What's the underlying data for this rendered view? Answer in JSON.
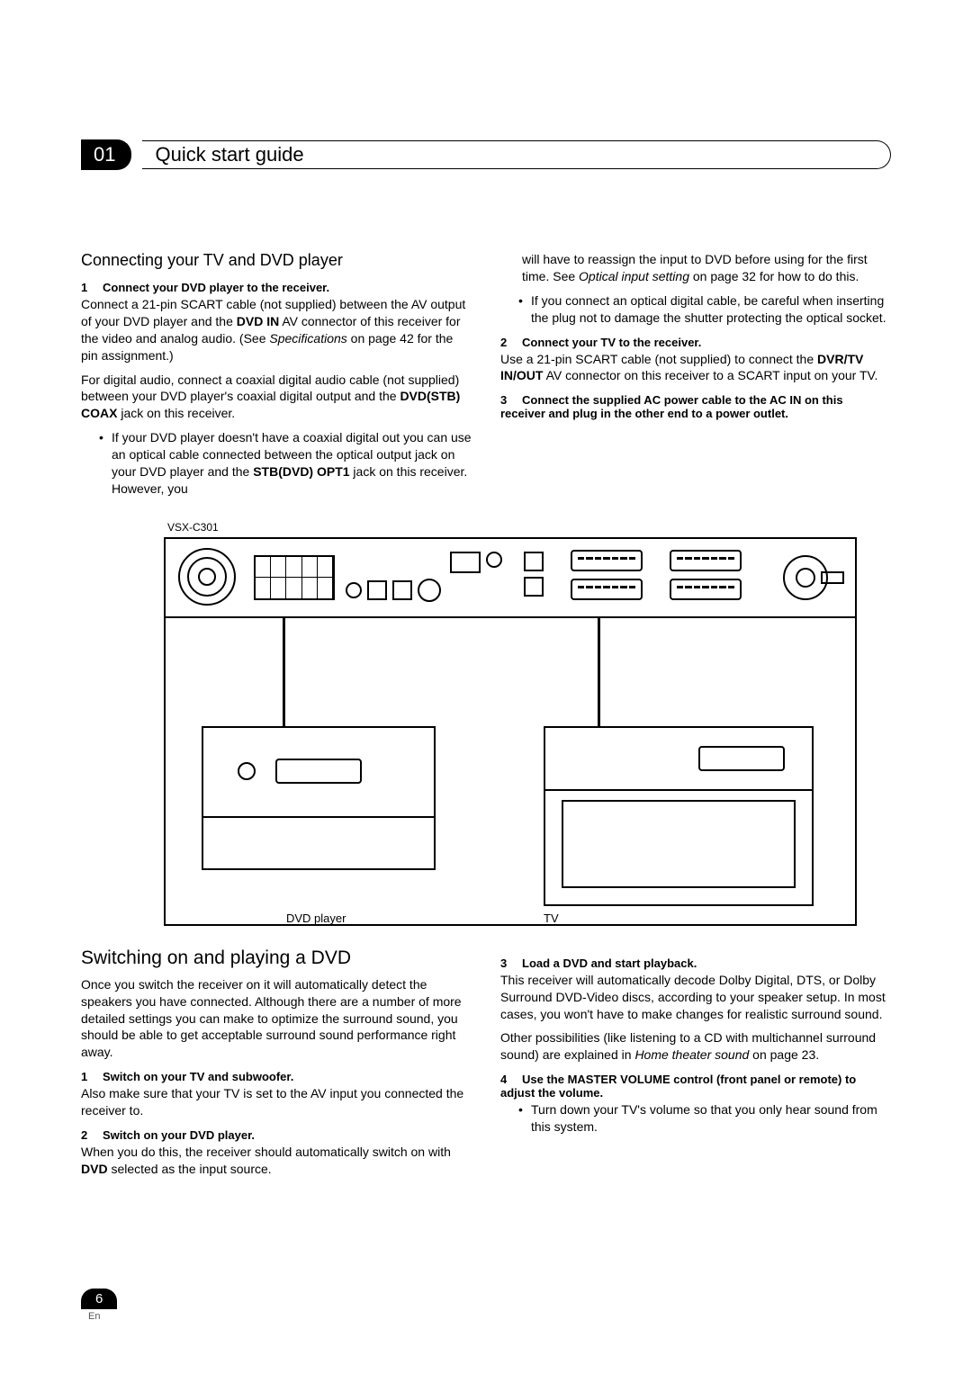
{
  "chapter": {
    "number": "01",
    "title": "Quick start guide"
  },
  "left": {
    "section_heading": "Connecting your TV and DVD player",
    "step1_heading": "Connect your DVD player to the receiver.",
    "step1_num": "1",
    "step1_p1a": "Connect a 21-pin SCART cable (not supplied) between the AV output of your DVD player and the ",
    "step1_dvdin": "DVD IN",
    "step1_p1b": " AV connector of this receiver for the video and analog audio. (See ",
    "step1_spec": "Specifications",
    "step1_p1c": " on page 42 for the pin assignment.)",
    "step1_p2a": "For digital audio, connect a coaxial digital audio cable (not supplied) between your DVD player's coaxial digital output and the ",
    "step1_coax": "DVD(STB) COAX",
    "step1_p2b": " jack on this receiver.",
    "bullet1a": "If your DVD player doesn't have a coaxial digital out you can use an optical cable connected between the optical output jack on your DVD player and the ",
    "bullet1_opt": "STB(DVD) OPT1",
    "bullet1b": " jack on this receiver. However, you"
  },
  "right": {
    "cont_a": "will have to reassign the input to DVD before using for the first time. See ",
    "cont_opt": "Optical input setting",
    "cont_b": " on page 32 for how to do this.",
    "bullet2": "If you connect an optical digital cable, be careful when inserting the plug not to damage the shutter protecting the optical socket.",
    "step2_num": "2",
    "step2_heading": "Connect your TV to the receiver.",
    "step2_p1a": "Use a 21-pin SCART cable (not supplied) to connect the ",
    "step2_dvr": "DVR/TV IN/OUT",
    "step2_p1b": " AV connector on this receiver to a SCART input on your TV.",
    "step3_num": "3",
    "step3_heading": "Connect the supplied AC power cable to the AC IN on this receiver and plug in the other end to a power outlet."
  },
  "diagram": {
    "model": "VSX-C301",
    "dvd_label": "DVD player",
    "tv_label": "TV"
  },
  "lower_left": {
    "heading": "Switching on and playing a DVD",
    "intro": "Once you switch the receiver on it will automatically detect the speakers you have connected. Although there are a number of more detailed settings you can make to optimize the surround sound, you should be able to get acceptable surround sound performance right away.",
    "s1_num": "1",
    "s1_heading": "Switch on your TV and subwoofer.",
    "s1_body": "Also make sure that your TV is set to the AV input you connected the receiver to.",
    "s2_num": "2",
    "s2_heading": "Switch on your DVD player.",
    "s2_body_a": "When you do this, the receiver should automatically switch on with ",
    "s2_dvd": "DVD",
    "s2_body_b": " selected as the input source."
  },
  "lower_right": {
    "s3_num": "3",
    "s3_heading": "Load a DVD and start playback.",
    "s3_body": "This receiver will automatically decode Dolby Digital, DTS, or Dolby Surround DVD-Video discs, according to your speaker setup. In most cases, you won't have to make changes for realistic surround sound.",
    "s3_body2a": "Other possibilities (like listening to a CD with multichannel surround sound) are explained in ",
    "s3_home": "Home theater sound",
    "s3_body2b": " on page 23.",
    "s4_num": "4",
    "s4_heading": "Use the MASTER VOLUME control (front panel or remote) to adjust the volume.",
    "s4_bullet": "Turn down your TV's volume so that you only hear sound from this system."
  },
  "footer": {
    "page": "6",
    "lang": "En"
  }
}
